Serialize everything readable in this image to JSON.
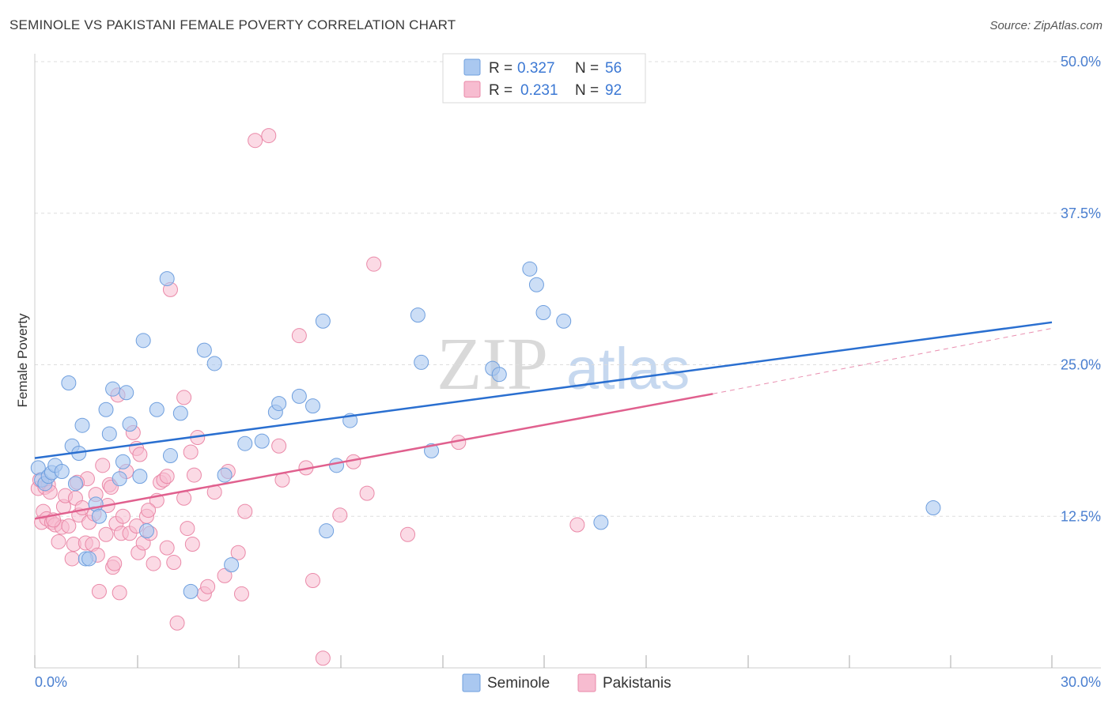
{
  "title": "SEMINOLE VS PAKISTANI FEMALE POVERTY CORRELATION CHART",
  "source": "Source: ZipAtlas.com",
  "watermark": {
    "zip": "ZIP",
    "atlas": "atlas"
  },
  "colors": {
    "seminole_fill": "#aac8f0",
    "seminole_stroke": "#6f9fde",
    "seminole_line": "#2a6fd0",
    "pakistani_fill": "#f7bcd0",
    "pakistani_stroke": "#ea89a8",
    "pakistani_line": "#e0608e",
    "tick_text": "#4a7fd0",
    "grid": "#dddddd"
  },
  "legend": {
    "rows": [
      {
        "r_label": "R =",
        "r_value": "0.327",
        "n_label": "N =",
        "n_value": "56"
      },
      {
        "r_label": "R =",
        "r_value": "0.231",
        "n_label": "N =",
        "n_value": "92"
      }
    ]
  },
  "chart_data": {
    "type": "scatter",
    "title": "SEMINOLE VS PAKISTANI FEMALE POVERTY CORRELATION CHART",
    "xlabel": "",
    "ylabel": "Female Poverty",
    "xlim": [
      0,
      30
    ],
    "ylim": [
      0,
      50
    ],
    "x_tick_labels": [
      "0.0%",
      "30.0%"
    ],
    "y_ticks": [
      12.5,
      25.0,
      37.5,
      50.0
    ],
    "y_tick_labels": [
      "12.5%",
      "25.0%",
      "37.5%",
      "50.0%"
    ],
    "legend_position": "top-center",
    "series": [
      {
        "name": "Seminole",
        "r": 0.327,
        "n": 56,
        "trend": {
          "x0": 0,
          "y0": 17.3,
          "x1": 30,
          "y1": 28.5,
          "dashed_from": null
        },
        "points": [
          [
            0.1,
            16.5
          ],
          [
            0.2,
            15.5
          ],
          [
            0.3,
            15.2
          ],
          [
            0.4,
            15.8
          ],
          [
            0.5,
            16.1
          ],
          [
            0.6,
            16.7
          ],
          [
            0.8,
            16.2
          ],
          [
            1.0,
            23.5
          ],
          [
            1.1,
            18.3
          ],
          [
            1.2,
            15.2
          ],
          [
            1.3,
            17.7
          ],
          [
            1.4,
            20.0
          ],
          [
            1.5,
            9.0
          ],
          [
            1.6,
            9.0
          ],
          [
            1.8,
            13.5
          ],
          [
            1.9,
            12.5
          ],
          [
            2.1,
            21.3
          ],
          [
            2.2,
            19.3
          ],
          [
            2.3,
            23.0
          ],
          [
            2.5,
            15.6
          ],
          [
            2.6,
            17.0
          ],
          [
            2.7,
            22.7
          ],
          [
            2.8,
            20.1
          ],
          [
            3.1,
            15.8
          ],
          [
            3.2,
            27.0
          ],
          [
            3.3,
            11.3
          ],
          [
            3.6,
            21.3
          ],
          [
            3.9,
            32.1
          ],
          [
            4.0,
            17.5
          ],
          [
            4.3,
            21.0
          ],
          [
            4.6,
            6.3
          ],
          [
            5.0,
            26.2
          ],
          [
            5.3,
            25.1
          ],
          [
            5.6,
            15.9
          ],
          [
            5.8,
            8.5
          ],
          [
            6.2,
            18.5
          ],
          [
            6.7,
            18.7
          ],
          [
            7.1,
            21.1
          ],
          [
            7.2,
            21.8
          ],
          [
            7.8,
            22.4
          ],
          [
            8.2,
            21.6
          ],
          [
            8.5,
            28.6
          ],
          [
            8.6,
            11.3
          ],
          [
            8.9,
            16.7
          ],
          [
            9.3,
            20.4
          ],
          [
            11.3,
            29.1
          ],
          [
            11.4,
            25.2
          ],
          [
            11.7,
            17.9
          ],
          [
            13.5,
            24.7
          ],
          [
            13.7,
            24.2
          ],
          [
            14.6,
            32.9
          ],
          [
            14.8,
            31.6
          ],
          [
            15.0,
            29.3
          ],
          [
            15.6,
            28.6
          ],
          [
            16.7,
            12.0
          ],
          [
            26.5,
            13.2
          ]
        ]
      },
      {
        "name": "Pakistanis",
        "r": 0.231,
        "n": 92,
        "trend": {
          "x0": 0,
          "y0": 12.3,
          "x1": 20,
          "y1": 22.6,
          "dashed_from": 20,
          "dashed_x1": 30,
          "dashed_y1": 28.0
        },
        "points": [
          [
            0.1,
            14.8
          ],
          [
            0.15,
            15.5
          ],
          [
            0.2,
            12.0
          ],
          [
            0.25,
            12.9
          ],
          [
            0.3,
            14.9
          ],
          [
            0.35,
            12.3
          ],
          [
            0.4,
            15.1
          ],
          [
            0.45,
            14.5
          ],
          [
            0.5,
            12.0
          ],
          [
            0.6,
            11.8
          ],
          [
            0.7,
            10.4
          ],
          [
            0.8,
            11.6
          ],
          [
            0.85,
            13.3
          ],
          [
            0.9,
            14.2
          ],
          [
            1.0,
            11.7
          ],
          [
            1.1,
            9.0
          ],
          [
            1.15,
            10.2
          ],
          [
            1.2,
            14.0
          ],
          [
            1.3,
            12.6
          ],
          [
            1.4,
            13.2
          ],
          [
            1.5,
            10.3
          ],
          [
            1.55,
            15.6
          ],
          [
            1.6,
            12.0
          ],
          [
            1.7,
            10.2
          ],
          [
            1.75,
            12.7
          ],
          [
            1.8,
            14.3
          ],
          [
            1.85,
            9.3
          ],
          [
            1.9,
            6.3
          ],
          [
            2.0,
            16.7
          ],
          [
            2.1,
            11.0
          ],
          [
            2.15,
            13.4
          ],
          [
            2.2,
            15.1
          ],
          [
            2.3,
            8.3
          ],
          [
            2.35,
            8.6
          ],
          [
            2.4,
            11.9
          ],
          [
            2.45,
            22.5
          ],
          [
            2.5,
            6.2
          ],
          [
            2.55,
            11.1
          ],
          [
            2.6,
            12.5
          ],
          [
            2.7,
            16.2
          ],
          [
            2.8,
            11.1
          ],
          [
            2.9,
            19.4
          ],
          [
            3.0,
            18.1
          ],
          [
            3.0,
            11.7
          ],
          [
            3.05,
            9.5
          ],
          [
            3.1,
            17.6
          ],
          [
            3.2,
            10.3
          ],
          [
            3.3,
            12.5
          ],
          [
            3.4,
            11.1
          ],
          [
            3.5,
            8.6
          ],
          [
            3.6,
            13.8
          ],
          [
            3.7,
            15.3
          ],
          [
            3.8,
            15.5
          ],
          [
            3.9,
            15.8
          ],
          [
            3.9,
            9.9
          ],
          [
            4.0,
            31.2
          ],
          [
            4.2,
            3.7
          ],
          [
            4.4,
            22.3
          ],
          [
            4.4,
            14.0
          ],
          [
            4.5,
            11.5
          ],
          [
            4.6,
            17.8
          ],
          [
            4.65,
            10.2
          ],
          [
            4.7,
            15.9
          ],
          [
            4.8,
            19.0
          ],
          [
            5.0,
            6.1
          ],
          [
            5.1,
            6.7
          ],
          [
            5.3,
            14.5
          ],
          [
            5.6,
            7.6
          ],
          [
            5.7,
            16.2
          ],
          [
            6.0,
            9.5
          ],
          [
            6.1,
            6.1
          ],
          [
            6.2,
            12.9
          ],
          [
            6.5,
            43.5
          ],
          [
            6.9,
            43.9
          ],
          [
            7.2,
            18.3
          ],
          [
            7.3,
            15.5
          ],
          [
            7.8,
            27.4
          ],
          [
            8.0,
            16.5
          ],
          [
            8.2,
            7.2
          ],
          [
            8.5,
            0.8
          ],
          [
            9.0,
            12.6
          ],
          [
            9.4,
            17.0
          ],
          [
            9.8,
            14.4
          ],
          [
            10.0,
            33.3
          ],
          [
            11.0,
            11.0
          ],
          [
            12.5,
            18.6
          ],
          [
            16.0,
            11.8
          ],
          [
            3.35,
            13.0
          ],
          [
            1.25,
            15.3
          ],
          [
            0.55,
            12.2
          ],
          [
            2.25,
            14.9
          ],
          [
            4.1,
            8.7
          ]
        ]
      }
    ]
  },
  "bottom_legend": [
    {
      "label": "Seminole"
    },
    {
      "label": "Pakistanis"
    }
  ]
}
